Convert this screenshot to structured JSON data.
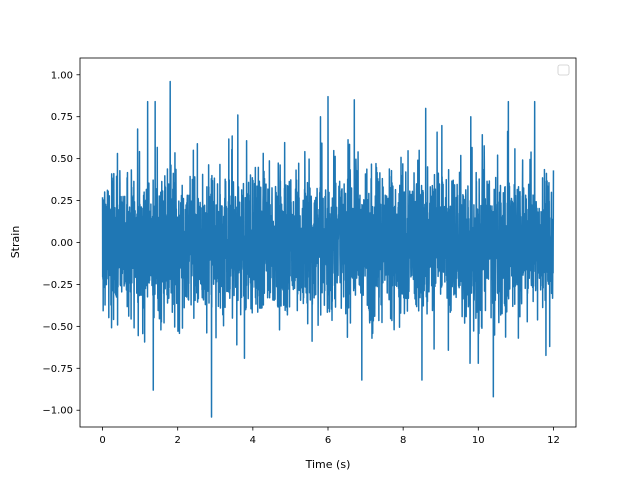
{
  "chart_data": {
    "type": "line",
    "title": "",
    "xlabel": "Time (s)",
    "ylabel": "Strain",
    "xlim": [
      -0.6,
      12.6
    ],
    "ylim": [
      -1.1,
      1.1
    ],
    "xticks": [
      0,
      2,
      4,
      6,
      8,
      10,
      12
    ],
    "xtick_labels": [
      "0",
      "2",
      "4",
      "6",
      "8",
      "10",
      "12"
    ],
    "yticks": [
      -1.0,
      -0.75,
      -0.5,
      -0.25,
      0.0,
      0.25,
      0.5,
      0.75,
      1.0
    ],
    "ytick_labels": [
      "−1.00",
      "−0.75",
      "−0.50",
      "−0.25",
      "0.00",
      "0.25",
      "0.50",
      "0.75",
      "1.00"
    ],
    "grid": false,
    "legend": {
      "placement": "upper right",
      "entries": []
    },
    "series": [
      {
        "color": "#1f77b4",
        "x_start": 0.0,
        "x_end": 12.0,
        "typical_range": [
          -0.5,
          0.5
        ],
        "peaks": [
          {
            "x": 0.0,
            "y": -0.64
          },
          {
            "x": 1.2,
            "y": 0.84
          },
          {
            "x": 1.4,
            "y": 0.84
          },
          {
            "x": 1.35,
            "y": -0.88
          },
          {
            "x": 1.8,
            "y": 0.96
          },
          {
            "x": 2.9,
            "y": -1.04
          },
          {
            "x": 3.6,
            "y": 0.76
          },
          {
            "x": 5.8,
            "y": 0.75
          },
          {
            "x": 6.0,
            "y": 0.87
          },
          {
            "x": 6.7,
            "y": 0.85
          },
          {
            "x": 6.9,
            "y": -0.82
          },
          {
            "x": 8.5,
            "y": -0.82
          },
          {
            "x": 8.6,
            "y": 0.8
          },
          {
            "x": 9.8,
            "y": 0.75
          },
          {
            "x": 10.4,
            "y": 1.0
          },
          {
            "x": 10.4,
            "y": -0.92
          },
          {
            "x": 10.8,
            "y": 0.84
          },
          {
            "x": 11.5,
            "y": 0.84
          },
          {
            "x": 11.9,
            "y": 0.66
          },
          {
            "x": 11.9,
            "y": -0.62
          }
        ]
      }
    ]
  }
}
